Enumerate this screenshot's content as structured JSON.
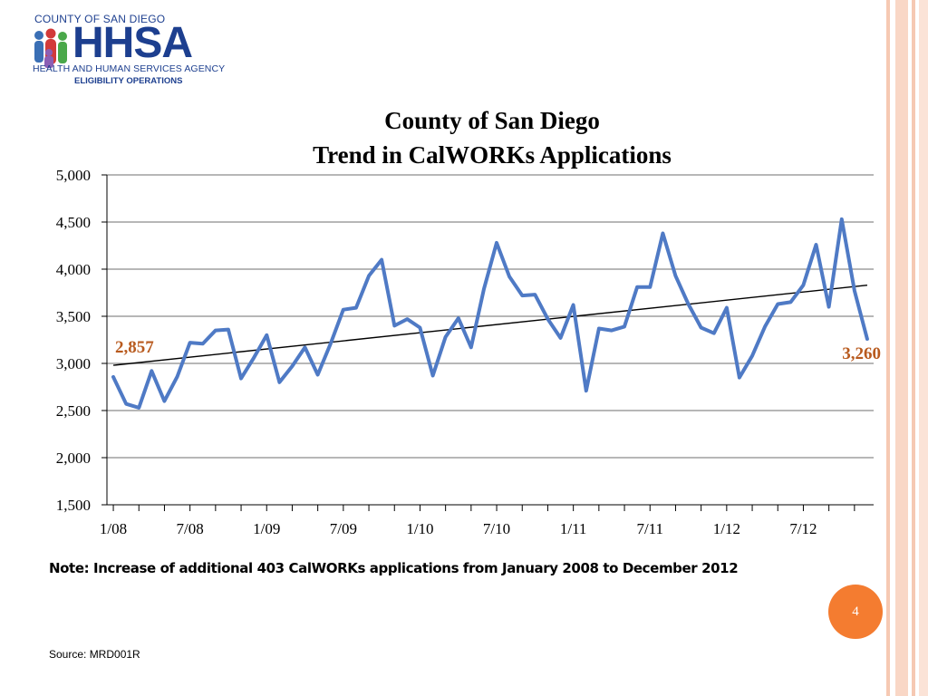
{
  "logo": {
    "county": "COUNTY OF SAN DIEGO",
    "name": "HHSA",
    "agency": "HEALTH AND HUMAN SERVICES AGENCY",
    "division": "ELIGIBILITY OPERATIONS"
  },
  "chart_data": {
    "type": "line",
    "title": [
      "County of San Diego",
      "Trend in CalWORKs Applications"
    ],
    "xlabel": "",
    "ylabel": "",
    "ylim": [
      1500,
      5000
    ],
    "yticks": [
      1500,
      2000,
      2500,
      3000,
      3500,
      4000,
      4500,
      5000
    ],
    "ytick_labels": [
      "1,500",
      "2,000",
      "2,500",
      "3,000",
      "3,500",
      "4,000",
      "4,500",
      "5,000"
    ],
    "xtick_labels": [
      "1/08",
      "7/08",
      "1/09",
      "7/09",
      "1/10",
      "7/10",
      "1/11",
      "7/11",
      "1/12",
      "7/12"
    ],
    "grid": true,
    "series": [
      {
        "values": [
          2857,
          2570,
          2530,
          2920,
          2600,
          2860,
          3220,
          3210,
          3350,
          3360,
          2840,
          3060,
          3300,
          2800,
          2970,
          3170,
          2880,
          3210,
          3570,
          3590,
          3930,
          4100,
          3400,
          3470,
          3380,
          2870,
          3280,
          3480,
          3170,
          3790,
          4280,
          3920,
          3720,
          3730,
          3470,
          3270,
          3620,
          2710,
          3370,
          3350,
          3390,
          3810,
          3810,
          4380,
          3930,
          3630,
          3380,
          3320,
          3590,
          2850,
          3080,
          3390,
          3630,
          3650,
          3830,
          4260,
          3600,
          4530,
          3770,
          3260
        ],
        "color": "#4f7ac5"
      }
    ],
    "trendline": {
      "start": 2980,
      "end": 3830,
      "color": "#000000"
    },
    "annotations": [
      {
        "text": "2,857",
        "color": "#b85a1e"
      },
      {
        "text": "3,260",
        "color": "#b85a1e"
      }
    ]
  },
  "note": "Note:  Increase of additional 403 CalWORKs applications from January 2008 to December 2012",
  "page_number": "4",
  "source": "Source: MRD001R"
}
